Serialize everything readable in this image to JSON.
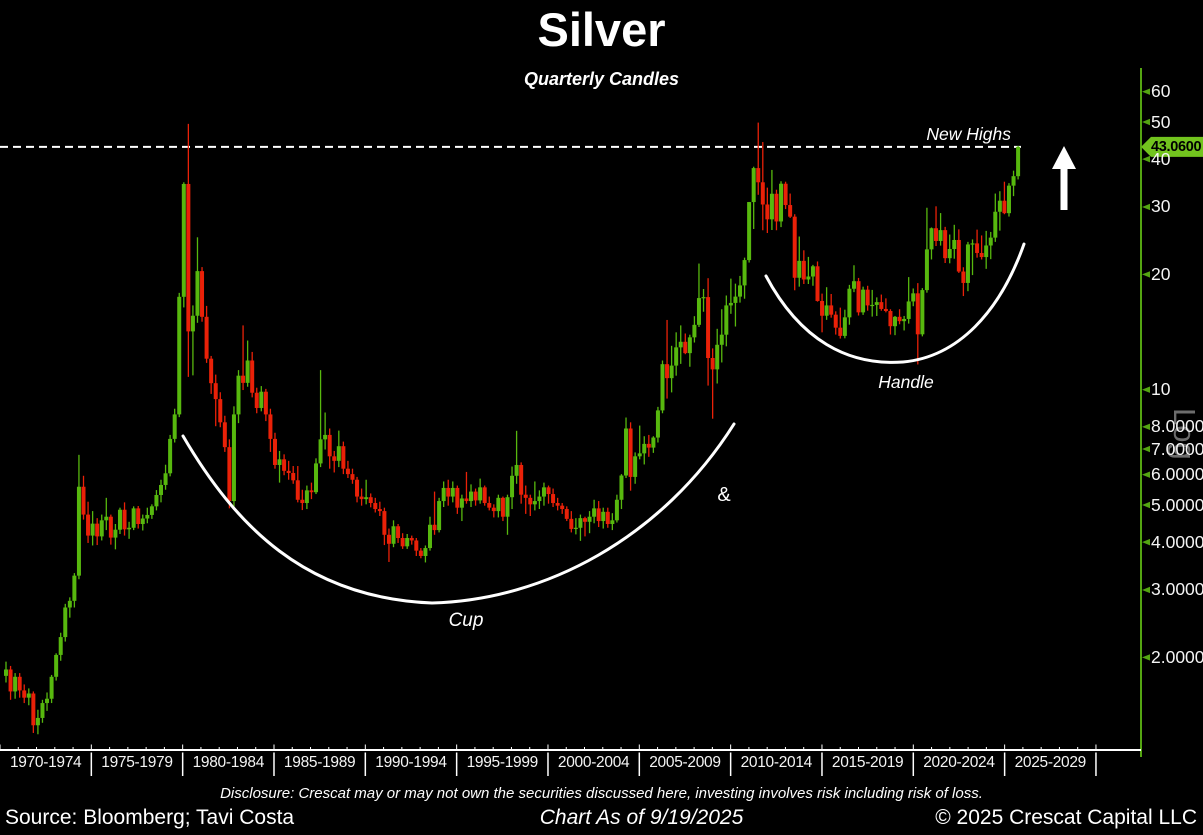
{
  "header": {
    "title": "Silver",
    "subtitle": "Quarterly Candles"
  },
  "annotations": {
    "new_highs": "New Highs",
    "cup": "Cup",
    "ampersand": "&",
    "handle": "Handle",
    "log_scale": "Log",
    "price_tag": "43.0600"
  },
  "footer": {
    "disclosure": "Disclosure: Crescat may or may not own the securities discussed here, investing involves risk including risk of loss.",
    "source": "Source: Bloomberg; Tavi Costa",
    "as_of": "Chart As of 9/19/2025",
    "copyright": "© 2025 Crescat Capital LLC"
  },
  "colors": {
    "background": "#000000",
    "candle_up": "#57b80e",
    "candle_down": "#ea2108",
    "axis_line_green": "#54a512",
    "tag_green": "#72c41e",
    "axis_text": "#f4f4f4",
    "annotation_white": "#ffffff",
    "log_gray": "#808080"
  },
  "y_axis": {
    "side": "right",
    "scale": "log",
    "labels": [
      "60",
      "50",
      "40",
      "30",
      "20",
      "10",
      "8.0000",
      "7.0000",
      "6.0000",
      "5.0000",
      "4.0000",
      "3.0000",
      "2.0000"
    ],
    "values": [
      60,
      50,
      40,
      30,
      20,
      10,
      8,
      7,
      6,
      5,
      4,
      3,
      2
    ]
  },
  "x_axis": {
    "labels": [
      "1970-1974",
      "1975-1979",
      "1980-1984",
      "1985-1989",
      "1990-1994",
      "1995-1999",
      "2000-2004",
      "2005-2009",
      "2010-2014",
      "2015-2019",
      "2020-2024",
      "2025-2029"
    ]
  },
  "chart_data": {
    "type": "candlestick",
    "title": "Silver",
    "subtitle": "Quarterly Candles",
    "frequency": "quarterly",
    "start": "1970-Q1",
    "end": "2025-Q3",
    "y_scale": "log",
    "y_ticks": [
      60,
      50,
      40,
      30,
      20,
      10,
      8,
      7,
      6,
      5,
      4,
      3,
      2
    ],
    "last_price": 43.06,
    "new_highs_level": 43.06,
    "pattern": "Cup & Handle",
    "candles": [
      [
        1.79,
        1.95,
        1.72,
        1.86
      ],
      [
        1.86,
        1.9,
        1.55,
        1.63
      ],
      [
        1.63,
        1.82,
        1.56,
        1.78
      ],
      [
        1.78,
        1.82,
        1.57,
        1.64
      ],
      [
        1.64,
        1.7,
        1.52,
        1.57
      ],
      [
        1.57,
        1.66,
        1.5,
        1.61
      ],
      [
        1.61,
        1.63,
        1.27,
        1.33
      ],
      [
        1.33,
        1.46,
        1.26,
        1.39
      ],
      [
        1.39,
        1.55,
        1.35,
        1.52
      ],
      [
        1.52,
        1.62,
        1.45,
        1.56
      ],
      [
        1.56,
        1.8,
        1.52,
        1.78
      ],
      [
        1.78,
        2.05,
        1.74,
        2.03
      ],
      [
        2.03,
        2.32,
        1.96,
        2.26
      ],
      [
        2.26,
        2.76,
        2.2,
        2.7
      ],
      [
        2.7,
        2.87,
        2.54,
        2.81
      ],
      [
        2.81,
        3.32,
        2.7,
        3.27
      ],
      [
        3.27,
        6.76,
        3.2,
        5.58
      ],
      [
        5.58,
        5.96,
        4.58,
        4.72
      ],
      [
        4.72,
        5.1,
        3.98,
        4.16
      ],
      [
        4.16,
        4.82,
        3.92,
        4.47
      ],
      [
        4.47,
        4.62,
        3.93,
        4.14
      ],
      [
        4.14,
        4.72,
        4.04,
        4.56
      ],
      [
        4.56,
        5.22,
        4.3,
        4.66
      ],
      [
        4.66,
        4.72,
        3.94,
        4.11
      ],
      [
        4.11,
        4.46,
        3.83,
        4.31
      ],
      [
        4.31,
        4.92,
        4.2,
        4.86
      ],
      [
        4.86,
        5.08,
        4.16,
        4.32
      ],
      [
        4.32,
        4.52,
        4.08,
        4.36
      ],
      [
        4.36,
        4.96,
        4.3,
        4.9
      ],
      [
        4.9,
        4.97,
        4.34,
        4.46
      ],
      [
        4.46,
        4.72,
        4.29,
        4.61
      ],
      [
        4.61,
        4.92,
        4.48,
        4.71
      ],
      [
        4.71,
        5.02,
        4.6,
        4.96
      ],
      [
        4.96,
        5.47,
        4.84,
        5.31
      ],
      [
        5.31,
        5.82,
        5.08,
        5.64
      ],
      [
        5.64,
        6.37,
        5.48,
        6.05
      ],
      [
        6.05,
        7.62,
        5.94,
        7.44
      ],
      [
        7.44,
        8.92,
        7.28,
        8.62
      ],
      [
        8.62,
        17.9,
        8.48,
        17.48
      ],
      [
        17.48,
        34.8,
        16.4,
        34.45
      ],
      [
        34.45,
        49.45,
        10.8,
        14.2
      ],
      [
        14.2,
        16.6,
        10.9,
        15.6
      ],
      [
        15.6,
        25.0,
        14.95,
        20.4
      ],
      [
        20.4,
        20.9,
        15.05,
        15.5
      ],
      [
        15.5,
        16.55,
        11.75,
        12.05
      ],
      [
        12.05,
        12.25,
        9.75,
        10.4
      ],
      [
        10.4,
        10.95,
        8.03,
        9.45
      ],
      [
        9.45,
        9.85,
        7.98,
        8.22
      ],
      [
        8.22,
        8.55,
        6.88,
        7.08
      ],
      [
        7.08,
        7.42,
        4.9,
        5.12
      ],
      [
        5.12,
        9.05,
        4.88,
        8.62
      ],
      [
        8.62,
        11.25,
        8.18,
        10.88
      ],
      [
        10.88,
        14.72,
        9.98,
        10.42
      ],
      [
        10.42,
        13.44,
        10.18,
        11.92
      ],
      [
        11.92,
        12.55,
        9.55,
        9.82
      ],
      [
        9.82,
        10.12,
        8.68,
        8.96
      ],
      [
        8.96,
        10.22,
        8.78,
        9.88
      ],
      [
        9.88,
        10.05,
        8.28,
        8.62
      ],
      [
        8.62,
        8.92,
        6.88,
        7.44
      ],
      [
        7.44,
        7.72,
        6.22,
        6.36
      ],
      [
        6.36,
        6.92,
        5.72,
        6.58
      ],
      [
        6.58,
        6.78,
        5.98,
        6.14
      ],
      [
        6.14,
        6.52,
        5.82,
        6.06
      ],
      [
        6.06,
        6.32,
        5.68,
        5.8
      ],
      [
        5.8,
        6.32,
        5.08,
        5.16
      ],
      [
        5.16,
        5.48,
        4.85,
        5.06
      ],
      [
        5.06,
        5.62,
        4.88,
        5.46
      ],
      [
        5.46,
        5.72,
        5.18,
        5.4
      ],
      [
        5.4,
        6.62,
        5.34,
        6.42
      ],
      [
        6.42,
        11.25,
        6.28,
        7.42
      ],
      [
        7.42,
        8.72,
        6.98,
        7.62
      ],
      [
        7.62,
        7.92,
        6.22,
        6.7
      ],
      [
        6.7,
        6.92,
        6.08,
        6.52
      ],
      [
        6.52,
        7.82,
        6.28,
        7.12
      ],
      [
        7.12,
        7.32,
        6.02,
        6.22
      ],
      [
        6.22,
        6.52,
        5.88,
        6.02
      ],
      [
        6.02,
        6.22,
        5.68,
        5.82
      ],
      [
        5.82,
        5.92,
        5.08,
        5.26
      ],
      [
        5.26,
        5.52,
        4.98,
        5.18
      ],
      [
        5.18,
        5.82,
        5.02,
        5.24
      ],
      [
        5.24,
        5.36,
        4.93,
        5.06
      ],
      [
        5.06,
        5.22,
        4.78,
        4.88
      ],
      [
        4.88,
        5.1,
        4.68,
        4.82
      ],
      [
        4.82,
        4.92,
        3.93,
        4.18
      ],
      [
        4.18,
        4.34,
        3.55,
        3.96
      ],
      [
        3.96,
        4.56,
        3.88,
        4.4
      ],
      [
        4.4,
        4.46,
        3.98,
        4.1
      ],
      [
        4.1,
        4.22,
        3.84,
        3.9
      ],
      [
        3.9,
        4.2,
        3.84,
        4.1
      ],
      [
        4.1,
        4.16,
        3.94,
        4.04
      ],
      [
        4.04,
        4.1,
        3.68,
        3.8
      ],
      [
        3.8,
        3.86,
        3.63,
        3.68
      ],
      [
        3.68,
        3.92,
        3.54,
        3.86
      ],
      [
        3.86,
        4.66,
        3.8,
        4.44
      ],
      [
        4.44,
        5.42,
        4.18,
        4.3
      ],
      [
        4.3,
        5.22,
        4.24,
        5.12
      ],
      [
        5.12,
        5.76,
        4.94,
        5.54
      ],
      [
        5.54,
        5.82,
        4.98,
        5.26
      ],
      [
        5.26,
        5.76,
        5.08,
        5.54
      ],
      [
        5.54,
        5.62,
        4.74,
        4.92
      ],
      [
        4.92,
        5.32,
        4.54,
        5.2
      ],
      [
        5.2,
        6.1,
        5.04,
        5.12
      ],
      [
        5.12,
        5.66,
        4.94,
        5.42
      ],
      [
        5.42,
        5.52,
        4.98,
        5.14
      ],
      [
        5.14,
        5.86,
        5.04,
        5.56
      ],
      [
        5.56,
        5.62,
        4.98,
        5.06
      ],
      [
        5.06,
        5.26,
        4.84,
        4.92
      ],
      [
        4.92,
        5.02,
        4.64,
        4.82
      ],
      [
        4.82,
        5.32,
        4.64,
        5.22
      ],
      [
        5.22,
        5.26,
        4.54,
        4.66
      ],
      [
        4.66,
        5.32,
        4.18,
        5.24
      ],
      [
        5.24,
        6.3,
        4.88,
        5.96
      ],
      [
        5.96,
        7.81,
        5.68,
        6.36
      ],
      [
        6.36,
        6.46,
        5.04,
        5.32
      ],
      [
        5.32,
        5.62,
        4.74,
        5.22
      ],
      [
        5.22,
        5.32,
        4.68,
        5.02
      ],
      [
        5.02,
        5.76,
        4.84,
        5.12
      ],
      [
        5.12,
        5.46,
        4.88,
        5.26
      ],
      [
        5.26,
        5.72,
        4.98,
        5.56
      ],
      [
        5.56,
        5.62,
        5.04,
        5.34
      ],
      [
        5.34,
        5.52,
        4.94,
        5.06
      ],
      [
        5.06,
        5.22,
        4.84,
        4.98
      ],
      [
        4.98,
        5.06,
        4.74,
        4.88
      ],
      [
        4.88,
        4.96,
        4.54,
        4.6
      ],
      [
        4.6,
        4.82,
        4.24,
        4.33
      ],
      [
        4.33,
        4.62,
        4.19,
        4.36
      ],
      [
        4.36,
        4.72,
        4.03,
        4.62
      ],
      [
        4.62,
        4.66,
        4.14,
        4.52
      ],
      [
        4.52,
        4.82,
        4.22,
        4.66
      ],
      [
        4.66,
        5.16,
        4.48,
        4.9
      ],
      [
        4.9,
        5.12,
        4.38,
        4.54
      ],
      [
        4.54,
        4.92,
        4.34,
        4.8
      ],
      [
        4.8,
        4.92,
        4.36,
        4.46
      ],
      [
        4.46,
        4.76,
        4.3,
        4.56
      ],
      [
        4.56,
        5.32,
        4.5,
        5.16
      ],
      [
        5.16,
        6.02,
        4.88,
        5.97
      ],
      [
        5.97,
        8.46,
        5.88,
        7.92
      ],
      [
        7.92,
        8.22,
        5.45,
        5.92
      ],
      [
        5.92,
        6.86,
        5.68,
        6.7
      ],
      [
        6.7,
        8.06,
        6.58,
        6.82
      ],
      [
        6.82,
        7.56,
        6.38,
        7.22
      ],
      [
        7.22,
        7.62,
        6.68,
        7.06
      ],
      [
        7.06,
        7.56,
        6.84,
        7.5
      ],
      [
        7.5,
        9.02,
        7.28,
        8.83
      ],
      [
        8.83,
        11.92,
        8.68,
        11.66
      ],
      [
        11.66,
        15.21,
        9.48,
        10.72
      ],
      [
        10.72,
        13.02,
        9.84,
        11.56
      ],
      [
        11.56,
        14.12,
        10.88,
        12.9
      ],
      [
        12.9,
        14.72,
        11.68,
        13.34
      ],
      [
        13.34,
        14.02,
        12.38,
        12.46
      ],
      [
        12.46,
        13.92,
        11.48,
        13.7
      ],
      [
        13.7,
        15.56,
        13.28,
        14.77
      ],
      [
        14.77,
        21.35,
        14.58,
        17.35
      ],
      [
        17.35,
        18.32,
        15.98,
        17.45
      ],
      [
        17.45,
        19.55,
        10.25,
        12.1
      ],
      [
        12.1,
        12.82,
        8.4,
        11.3
      ],
      [
        11.3,
        14.42,
        10.38,
        13.1
      ],
      [
        13.1,
        16.22,
        11.78,
        13.92
      ],
      [
        13.92,
        17.62,
        12.98,
        16.6
      ],
      [
        16.6,
        19.5,
        15.78,
        16.85
      ],
      [
        16.85,
        18.92,
        14.62,
        17.5
      ],
      [
        17.5,
        19.82,
        16.88,
        18.72
      ],
      [
        18.72,
        22.12,
        17.28,
        21.8
      ],
      [
        21.8,
        30.92,
        21.48,
        30.9
      ],
      [
        30.9,
        38.22,
        26.28,
        37.9
      ],
      [
        37.9,
        49.82,
        32.28,
        34.8
      ],
      [
        34.8,
        44.32,
        26.08,
        30.45
      ],
      [
        30.45,
        33.7,
        25.65,
        27.85
      ],
      [
        27.85,
        37.48,
        26.12,
        32.48
      ],
      [
        32.48,
        33.28,
        26.08,
        27.5
      ],
      [
        27.5,
        35.02,
        26.58,
        34.5
      ],
      [
        34.5,
        34.92,
        29.62,
        30.35
      ],
      [
        30.35,
        32.52,
        28.08,
        28.3
      ],
      [
        28.3,
        28.72,
        18.18,
        19.6
      ],
      [
        19.6,
        25.12,
        18.58,
        21.7
      ],
      [
        21.7,
        23.12,
        18.88,
        19.4
      ],
      [
        19.4,
        22.22,
        18.88,
        19.75
      ],
      [
        19.75,
        21.18,
        18.68,
        21.0
      ],
      [
        21.0,
        21.62,
        16.98,
        17.05
      ],
      [
        17.05,
        17.82,
        14.12,
        15.6
      ],
      [
        15.6,
        18.52,
        15.22,
        16.6
      ],
      [
        16.6,
        17.78,
        15.42,
        15.7
      ],
      [
        15.7,
        16.02,
        13.93,
        14.52
      ],
      [
        14.52,
        16.38,
        13.6,
        13.82
      ],
      [
        13.82,
        16.18,
        13.62,
        15.45
      ],
      [
        15.45,
        18.78,
        14.78,
        18.35
      ],
      [
        18.35,
        21.13,
        17.98,
        19.2
      ],
      [
        19.2,
        19.58,
        15.62,
        15.92
      ],
      [
        15.92,
        18.58,
        15.68,
        18.25
      ],
      [
        18.25,
        18.68,
        16.08,
        16.6
      ],
      [
        16.6,
        18.22,
        15.52,
        16.65
      ],
      [
        16.65,
        17.42,
        15.58,
        16.93
      ],
      [
        16.93,
        17.72,
        16.08,
        16.25
      ],
      [
        16.25,
        17.32,
        15.92,
        16.05
      ],
      [
        16.05,
        16.22,
        13.93,
        14.65
      ],
      [
        14.65,
        15.58,
        13.88,
        15.5
      ],
      [
        15.5,
        16.22,
        14.82,
        15.1
      ],
      [
        15.1,
        15.58,
        14.28,
        15.3
      ],
      [
        15.3,
        19.68,
        14.88,
        17.0
      ],
      [
        17.0,
        18.38,
        16.52,
        17.85
      ],
      [
        17.85,
        18.98,
        11.64,
        13.95
      ],
      [
        13.95,
        18.42,
        13.78,
        18.2
      ],
      [
        18.2,
        29.86,
        17.92,
        23.25
      ],
      [
        23.25,
        26.52,
        21.88,
        26.4
      ],
      [
        26.4,
        30.12,
        23.72,
        24.45
      ],
      [
        24.45,
        28.92,
        23.78,
        26.1
      ],
      [
        26.1,
        26.62,
        21.42,
        22.05
      ],
      [
        22.05,
        25.42,
        21.38,
        23.3
      ],
      [
        23.3,
        26.95,
        21.98,
        24.6
      ],
      [
        24.6,
        26.22,
        20.18,
        20.35
      ],
      [
        20.35,
        20.88,
        17.56,
        19.0
      ],
      [
        19.0,
        24.32,
        18.08,
        23.95
      ],
      [
        23.95,
        24.68,
        19.92,
        24.1
      ],
      [
        24.1,
        26.18,
        22.12,
        22.75
      ],
      [
        22.75,
        25.28,
        21.88,
        22.2
      ],
      [
        22.2,
        25.98,
        20.68,
        23.8
      ],
      [
        23.8,
        25.82,
        21.92,
        24.95
      ],
      [
        24.95,
        32.52,
        24.32,
        29.15
      ],
      [
        29.15,
        32.98,
        26.02,
        31.15
      ],
      [
        31.15,
        34.92,
        28.72,
        28.9
      ],
      [
        28.9,
        34.62,
        28.32,
        34.1
      ],
      [
        34.1,
        37.32,
        32.02,
        36.1
      ],
      [
        36.1,
        43.3,
        35.4,
        43.06
      ]
    ]
  }
}
